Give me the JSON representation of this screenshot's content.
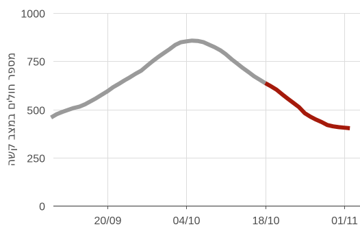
{
  "chart_data": {
    "type": "line",
    "ylabel": "מספר חולים במצב קשה",
    "xlabel": "",
    "ylim": [
      0,
      1000
    ],
    "y_ticks": [
      0,
      250,
      500,
      750,
      1000
    ],
    "y_tick_labels": [
      "0",
      "250",
      "500",
      "750",
      "1000"
    ],
    "x_ticks": [
      {
        "label": "20/09",
        "day": 20
      },
      {
        "label": "04/10",
        "day": 34
      },
      {
        "label": "18/10",
        "day": 48
      },
      {
        "label": "01/11",
        "day": 62
      }
    ],
    "xlim": [
      10,
      63
    ],
    "grid": true,
    "colors": {
      "history": "#9a9a9a",
      "recent": "#a51a0b",
      "grid": "#dcdcdc",
      "axis": "#555555",
      "text": "#4d4d4d"
    },
    "series": [
      {
        "style": "history",
        "points": [
          [
            10,
            458
          ],
          [
            11,
            475
          ],
          [
            12,
            487
          ],
          [
            13,
            497
          ],
          [
            14,
            507
          ],
          [
            15,
            514
          ],
          [
            16,
            526
          ],
          [
            17,
            542
          ],
          [
            18,
            558
          ],
          [
            19,
            576
          ],
          [
            20,
            594
          ],
          [
            21,
            615
          ],
          [
            22,
            632
          ],
          [
            23,
            650
          ],
          [
            24,
            667
          ],
          [
            25,
            685
          ],
          [
            26,
            701
          ],
          [
            27,
            726
          ],
          [
            28,
            750
          ],
          [
            29,
            772
          ],
          [
            30,
            792
          ],
          [
            31,
            812
          ],
          [
            32,
            834
          ],
          [
            33,
            848
          ],
          [
            34,
            853
          ],
          [
            35,
            857
          ],
          [
            36,
            855
          ],
          [
            37,
            849
          ],
          [
            38,
            836
          ],
          [
            39,
            823
          ],
          [
            40,
            807
          ],
          [
            41,
            786
          ],
          [
            42,
            761
          ],
          [
            43,
            738
          ],
          [
            44,
            715
          ],
          [
            45,
            694
          ],
          [
            46,
            672
          ],
          [
            47,
            654
          ],
          [
            48,
            636
          ]
        ]
      },
      {
        "style": "recent",
        "points": [
          [
            48,
            636
          ],
          [
            49,
            620
          ],
          [
            50,
            602
          ],
          [
            51,
            578
          ],
          [
            52,
            555
          ],
          [
            53,
            533
          ],
          [
            54,
            511
          ],
          [
            55,
            480
          ],
          [
            56,
            462
          ],
          [
            57,
            447
          ],
          [
            58,
            434
          ],
          [
            59,
            419
          ],
          [
            60,
            412
          ],
          [
            61,
            408
          ],
          [
            62,
            405
          ],
          [
            63,
            402
          ]
        ]
      }
    ]
  }
}
